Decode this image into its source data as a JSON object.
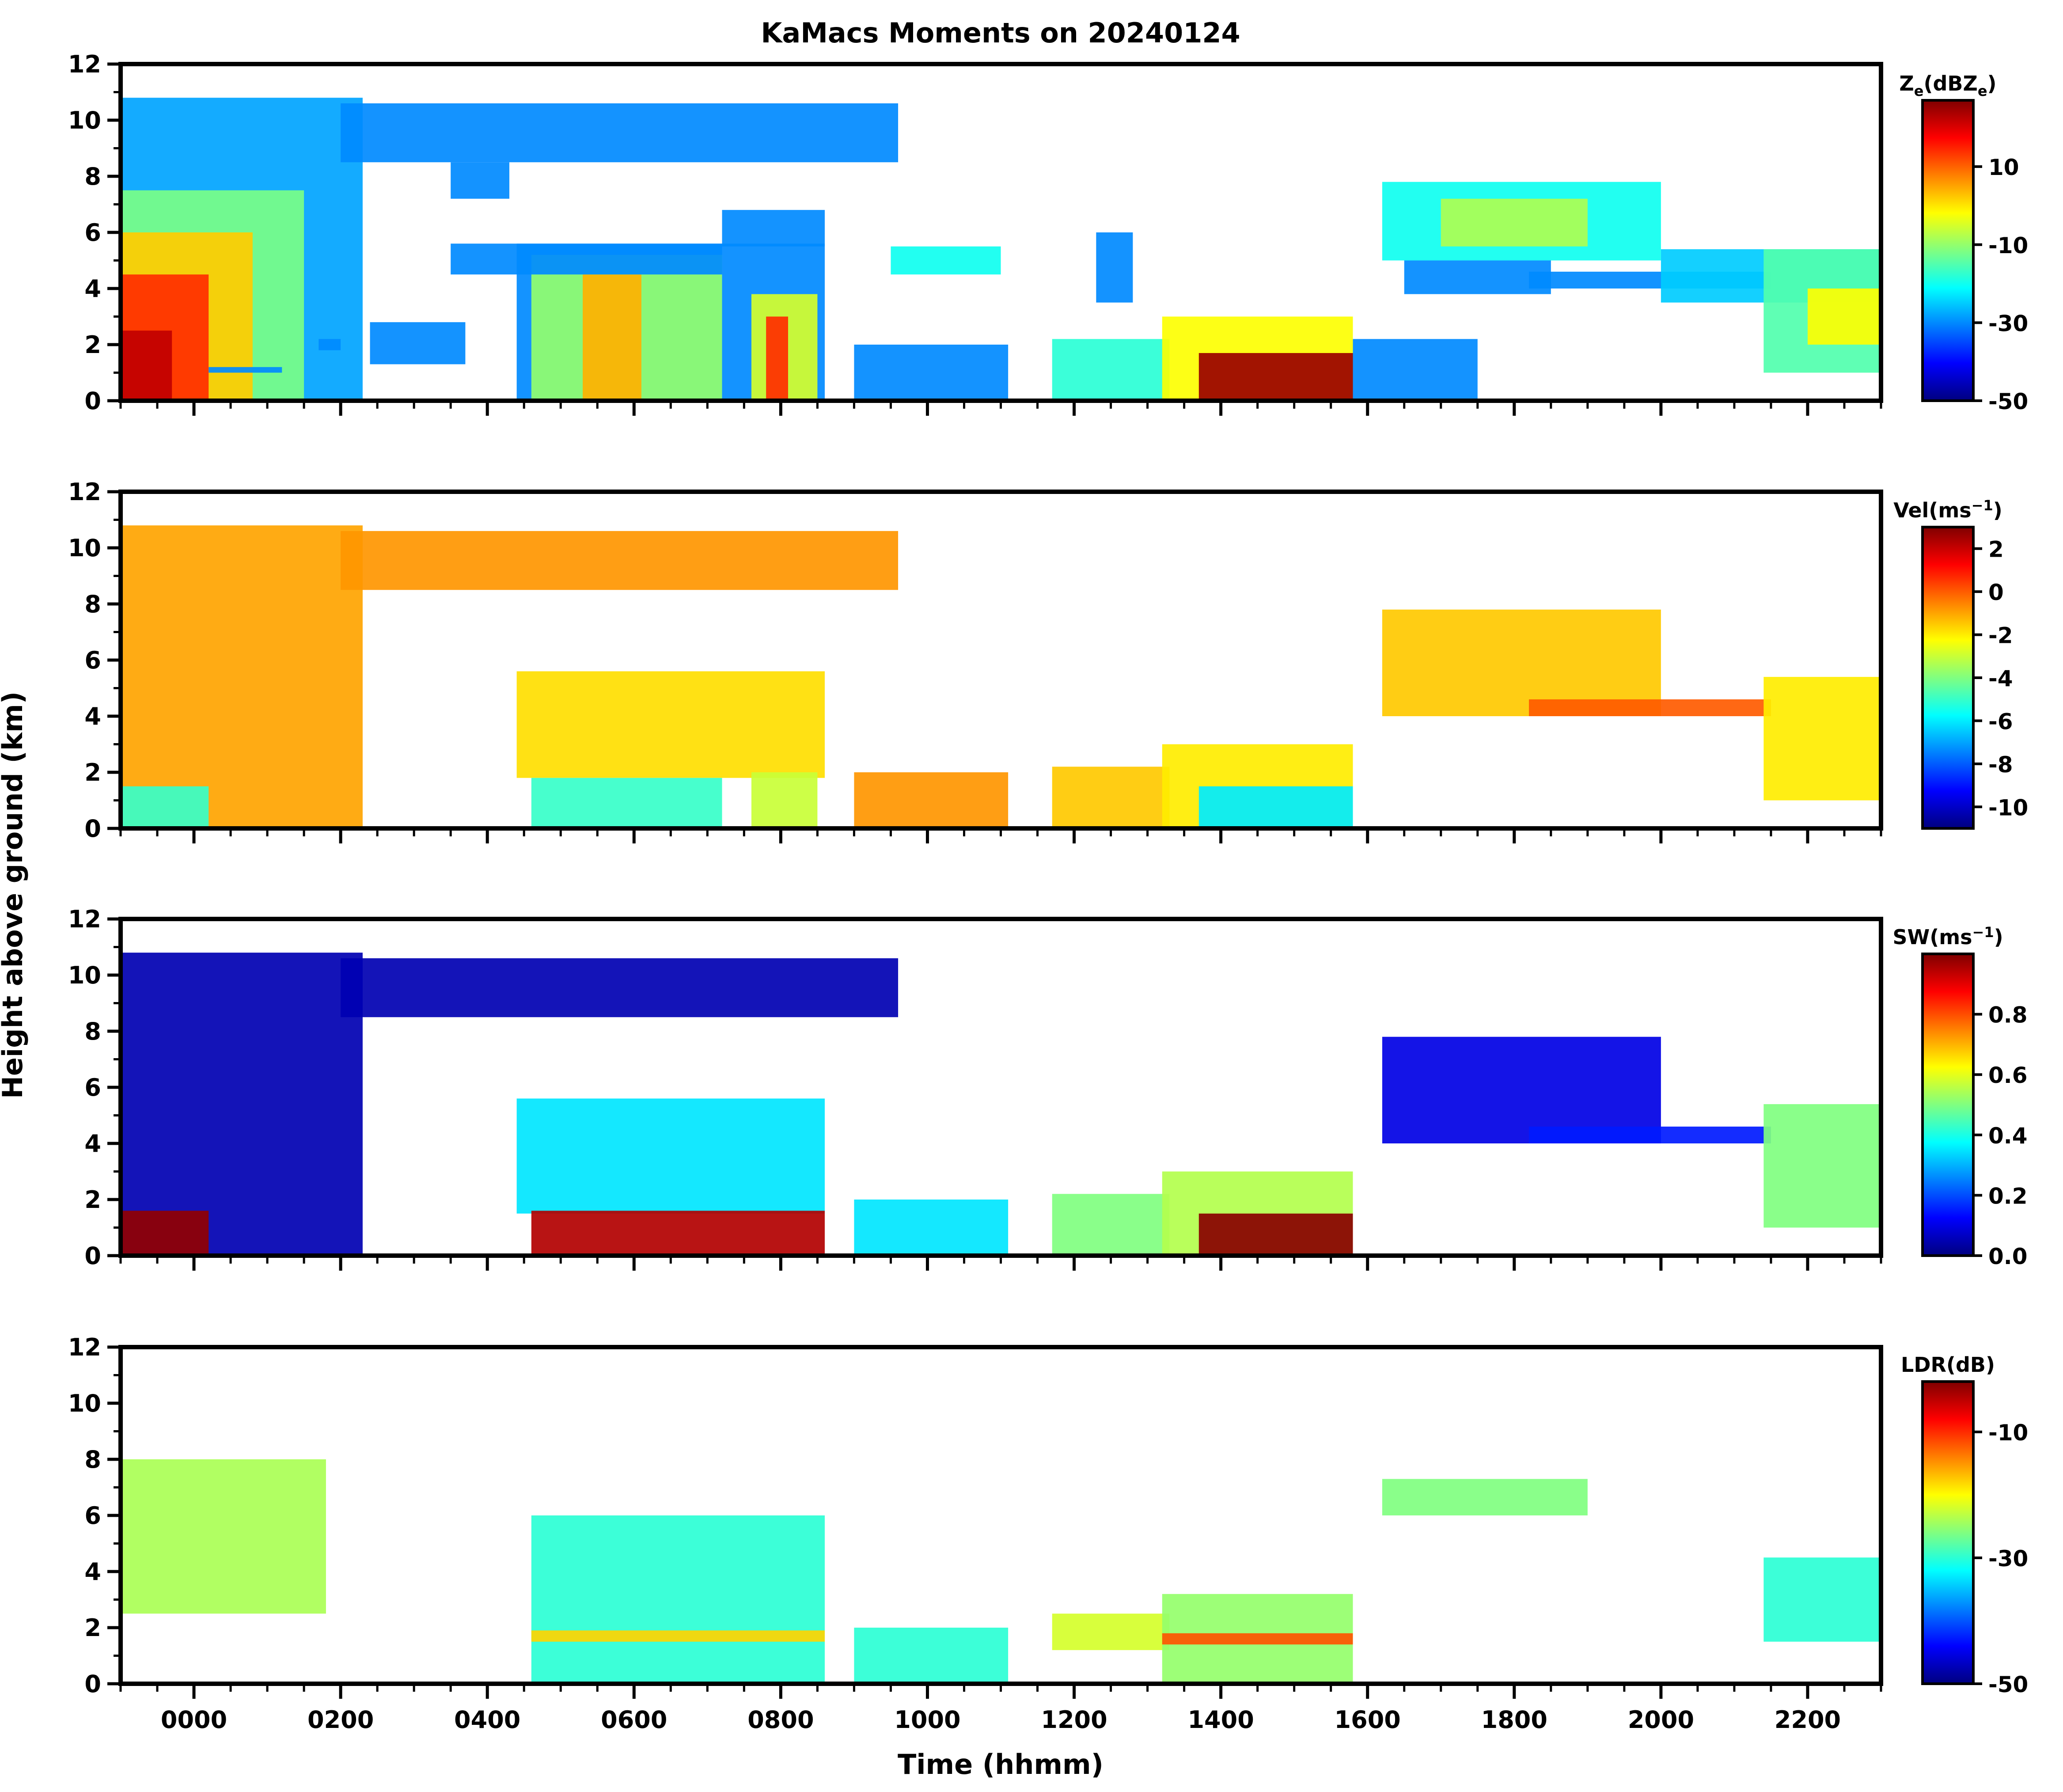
{
  "chart_data": {
    "type": "heatmap",
    "title": "KaMacs Moments on 20240124",
    "xlabel": "Time (hhmm)",
    "ylabel": "Height above ground (km)",
    "xlim": [
      -100,
      2300
    ],
    "x_ticks": [
      "0000",
      "0200",
      "0400",
      "0600",
      "0800",
      "1000",
      "1200",
      "1400",
      "1600",
      "1800",
      "2000",
      "2200"
    ],
    "x_tick_values": [
      0,
      200,
      400,
      600,
      800,
      1000,
      1200,
      1400,
      1600,
      1800,
      2000,
      2200
    ],
    "ylim": [
      0,
      12
    ],
    "y_ticks": [
      "0",
      "2",
      "4",
      "6",
      "8",
      "10",
      "12"
    ],
    "y_tick_values": [
      0,
      2,
      4,
      6,
      8,
      10,
      12
    ],
    "colormap": [
      "#00007f",
      "#0000ff",
      "#0080ff",
      "#00ffff",
      "#80ff80",
      "#ffff00",
      "#ff8000",
      "#ff0000",
      "#7f0000"
    ],
    "panels": [
      {
        "id": "ze",
        "colorbar_label": "Ze(dBZe)",
        "label_main": "Z",
        "label_sub": "e",
        "label_mid": "(dBZ",
        "label_sub2": "e",
        "label_end": ")",
        "range": [
          -50,
          27
        ],
        "ticks": [
          "10",
          "-10",
          "-30",
          "-50"
        ],
        "tick_values": [
          10,
          -10,
          -30,
          -50
        ],
        "regions": [
          {
            "x0": -100,
            "x1": 230,
            "y0": 0,
            "y1": 10.8,
            "v": -28
          },
          {
            "x0": -100,
            "x1": 150,
            "y0": 0,
            "y1": 7.5,
            "v": -12
          },
          {
            "x0": -100,
            "x1": 80,
            "y0": 0,
            "y1": 6,
            "v": 2
          },
          {
            "x0": -100,
            "x1": 20,
            "y0": 0,
            "y1": 4.5,
            "v": 14
          },
          {
            "x0": -100,
            "x1": -30,
            "y0": 0,
            "y1": 2.5,
            "v": 22
          },
          {
            "x0": 200,
            "x1": 960,
            "y0": 8.5,
            "y1": 10.6,
            "v": -30
          },
          {
            "x0": 350,
            "x1": 430,
            "y0": 7.2,
            "y1": 8.5,
            "v": -30
          },
          {
            "x0": 440,
            "x1": 860,
            "y0": 0,
            "y1": 5.6,
            "v": -30
          },
          {
            "x0": 460,
            "x1": 720,
            "y0": 0,
            "y1": 5.2,
            "v": -10
          },
          {
            "x0": 530,
            "x1": 610,
            "y0": 0,
            "y1": 4.5,
            "v": 4
          },
          {
            "x0": 760,
            "x1": 850,
            "y0": 0,
            "y1": 3.8,
            "v": -5
          },
          {
            "x0": 780,
            "x1": 810,
            "y0": 0,
            "y1": 3.0,
            "v": 14
          },
          {
            "x0": 350,
            "x1": 720,
            "y0": 4.5,
            "y1": 5.6,
            "v": -30
          },
          {
            "x0": 240,
            "x1": 370,
            "y0": 1.3,
            "y1": 2.8,
            "v": -30
          },
          {
            "x0": 20,
            "x1": 120,
            "y0": 1.0,
            "y1": 1.2,
            "v": -30
          },
          {
            "x0": 170,
            "x1": 200,
            "y0": 1.8,
            "y1": 2.2,
            "v": -30
          },
          {
            "x0": 720,
            "x1": 860,
            "y0": 5.5,
            "y1": 6.8,
            "v": -30
          },
          {
            "x0": 900,
            "x1": 1110,
            "y0": 0,
            "y1": 2.0,
            "v": -30
          },
          {
            "x0": 1170,
            "x1": 1330,
            "y0": 0,
            "y1": 2.2,
            "v": -18
          },
          {
            "x0": 1320,
            "x1": 1580,
            "y0": 0,
            "y1": 3.0,
            "v": -2
          },
          {
            "x0": 1370,
            "x1": 1580,
            "y0": 0,
            "y1": 1.7,
            "v": 25
          },
          {
            "x0": 1580,
            "x1": 1750,
            "y0": 0,
            "y1": 2.2,
            "v": -30
          },
          {
            "x0": 950,
            "x1": 1100,
            "y0": 4.5,
            "y1": 5.5,
            "v": -20
          },
          {
            "x0": 1230,
            "x1": 1280,
            "y0": 3.5,
            "y1": 6.0,
            "v": -30
          },
          {
            "x0": 1620,
            "x1": 2000,
            "y0": 5.0,
            "y1": 7.8,
            "v": -20
          },
          {
            "x0": 1700,
            "x1": 1900,
            "y0": 5.5,
            "y1": 7.2,
            "v": -8
          },
          {
            "x0": 1650,
            "x1": 1850,
            "y0": 3.8,
            "y1": 5.0,
            "v": -30
          },
          {
            "x0": 1820,
            "x1": 2150,
            "y0": 4.0,
            "y1": 4.6,
            "v": -30
          },
          {
            "x0": 2000,
            "x1": 2300,
            "y0": 3.5,
            "y1": 5.4,
            "v": -25
          },
          {
            "x0": 2140,
            "x1": 2300,
            "y0": 1.0,
            "y1": 5.4,
            "v": -15
          },
          {
            "x0": 2200,
            "x1": 2300,
            "y0": 2.0,
            "y1": 4.0,
            "v": -2
          }
        ]
      },
      {
        "id": "vel",
        "colorbar_label": "Vel(ms-1)",
        "label_main": "Vel(ms",
        "label_sup": "−1",
        "label_end": ")",
        "range": [
          -11,
          3
        ],
        "ticks": [
          "2",
          "0",
          "-2",
          "-4",
          "-6",
          "-8",
          "-10"
        ],
        "tick_values": [
          2,
          0,
          -2,
          -4,
          -6,
          -8,
          -10
        ],
        "regions": [
          {
            "x0": -100,
            "x1": 230,
            "y0": 0,
            "y1": 10.8,
            "v": -1
          },
          {
            "x0": -100,
            "x1": 20,
            "y0": 0,
            "y1": 1.5,
            "v": -5
          },
          {
            "x0": 200,
            "x1": 960,
            "y0": 8.5,
            "y1": 10.6,
            "v": -0.8
          },
          {
            "x0": 440,
            "x1": 860,
            "y0": 1.8,
            "y1": 5.6,
            "v": -1.8
          },
          {
            "x0": 460,
            "x1": 720,
            "y0": 0,
            "y1": 1.8,
            "v": -5
          },
          {
            "x0": 760,
            "x1": 850,
            "y0": 0,
            "y1": 2.0,
            "v": -3
          },
          {
            "x0": 900,
            "x1": 1110,
            "y0": 0,
            "y1": 2.0,
            "v": -0.8
          },
          {
            "x0": 1170,
            "x1": 1330,
            "y0": 0,
            "y1": 2.2,
            "v": -1.5
          },
          {
            "x0": 1320,
            "x1": 1580,
            "y0": 0,
            "y1": 3.0,
            "v": -2
          },
          {
            "x0": 1370,
            "x1": 1580,
            "y0": 0,
            "y1": 1.5,
            "v": -6
          },
          {
            "x0": 1620,
            "x1": 2000,
            "y0": 4.0,
            "y1": 7.8,
            "v": -1.5
          },
          {
            "x0": 1820,
            "x1": 2150,
            "y0": 4.0,
            "y1": 4.6,
            "v": 0
          },
          {
            "x0": 2140,
            "x1": 2300,
            "y0": 1.0,
            "y1": 5.4,
            "v": -2
          }
        ]
      },
      {
        "id": "sw",
        "colorbar_label": "SW(ms-1)",
        "label_main": "SW(ms",
        "label_sup": "−1",
        "label_end": ")",
        "range": [
          0,
          1
        ],
        "ticks": [
          "0.8",
          "0.6",
          "0.4",
          "0.2",
          "0.0"
        ],
        "tick_values": [
          0.8,
          0.6,
          0.4,
          0.2,
          0.0
        ],
        "regions": [
          {
            "x0": -100,
            "x1": 230,
            "y0": 0,
            "y1": 10.8,
            "v": 0.05
          },
          {
            "x0": -100,
            "x1": 20,
            "y0": 0,
            "y1": 1.6,
            "v": 0.98
          },
          {
            "x0": 200,
            "x1": 960,
            "y0": 8.5,
            "y1": 10.6,
            "v": 0.05
          },
          {
            "x0": 440,
            "x1": 860,
            "y0": 1.5,
            "y1": 5.6,
            "v": 0.35
          },
          {
            "x0": 460,
            "x1": 860,
            "y0": 0,
            "y1": 1.6,
            "v": 0.95
          },
          {
            "x0": 900,
            "x1": 1110,
            "y0": 0,
            "y1": 2.0,
            "v": 0.35
          },
          {
            "x0": 1170,
            "x1": 1330,
            "y0": 0,
            "y1": 2.2,
            "v": 0.5
          },
          {
            "x0": 1320,
            "x1": 1580,
            "y0": 0,
            "y1": 3.0,
            "v": 0.55
          },
          {
            "x0": 1370,
            "x1": 1580,
            "y0": 0,
            "y1": 1.5,
            "v": 0.99
          },
          {
            "x0": 1620,
            "x1": 2000,
            "y0": 4.0,
            "y1": 7.8,
            "v": 0.1
          },
          {
            "x0": 1820,
            "x1": 2150,
            "y0": 4.0,
            "y1": 4.6,
            "v": 0.15
          },
          {
            "x0": 2140,
            "x1": 2300,
            "y0": 1.0,
            "y1": 5.4,
            "v": 0.5
          }
        ]
      },
      {
        "id": "ldr",
        "colorbar_label": "LDR(dB)",
        "label_main": "LDR(dB)",
        "range": [
          -50,
          -2
        ],
        "ticks": [
          "-10",
          "-30",
          "-50"
        ],
        "tick_values": [
          -10,
          -30,
          -50
        ],
        "regions": [
          {
            "x0": -100,
            "x1": 180,
            "y0": 2.5,
            "y1": 8.0,
            "v": -24
          },
          {
            "x0": 460,
            "x1": 860,
            "y0": 0,
            "y1": 6.0,
            "v": -30
          },
          {
            "x0": 460,
            "x1": 860,
            "y0": 1.5,
            "y1": 1.9,
            "v": -18
          },
          {
            "x0": 900,
            "x1": 1110,
            "y0": 0,
            "y1": 2.0,
            "v": -30
          },
          {
            "x0": 1170,
            "x1": 1330,
            "y0": 1.2,
            "y1": 2.5,
            "v": -22
          },
          {
            "x0": 1320,
            "x1": 1580,
            "y0": 0,
            "y1": 3.2,
            "v": -25
          },
          {
            "x0": 1320,
            "x1": 1580,
            "y0": 1.4,
            "y1": 1.8,
            "v": -12
          },
          {
            "x0": 1620,
            "x1": 1900,
            "y0": 6.0,
            "y1": 7.3,
            "v": -26
          },
          {
            "x0": 2140,
            "x1": 2300,
            "y0": 1.5,
            "y1": 4.5,
            "v": -30
          }
        ]
      }
    ]
  }
}
